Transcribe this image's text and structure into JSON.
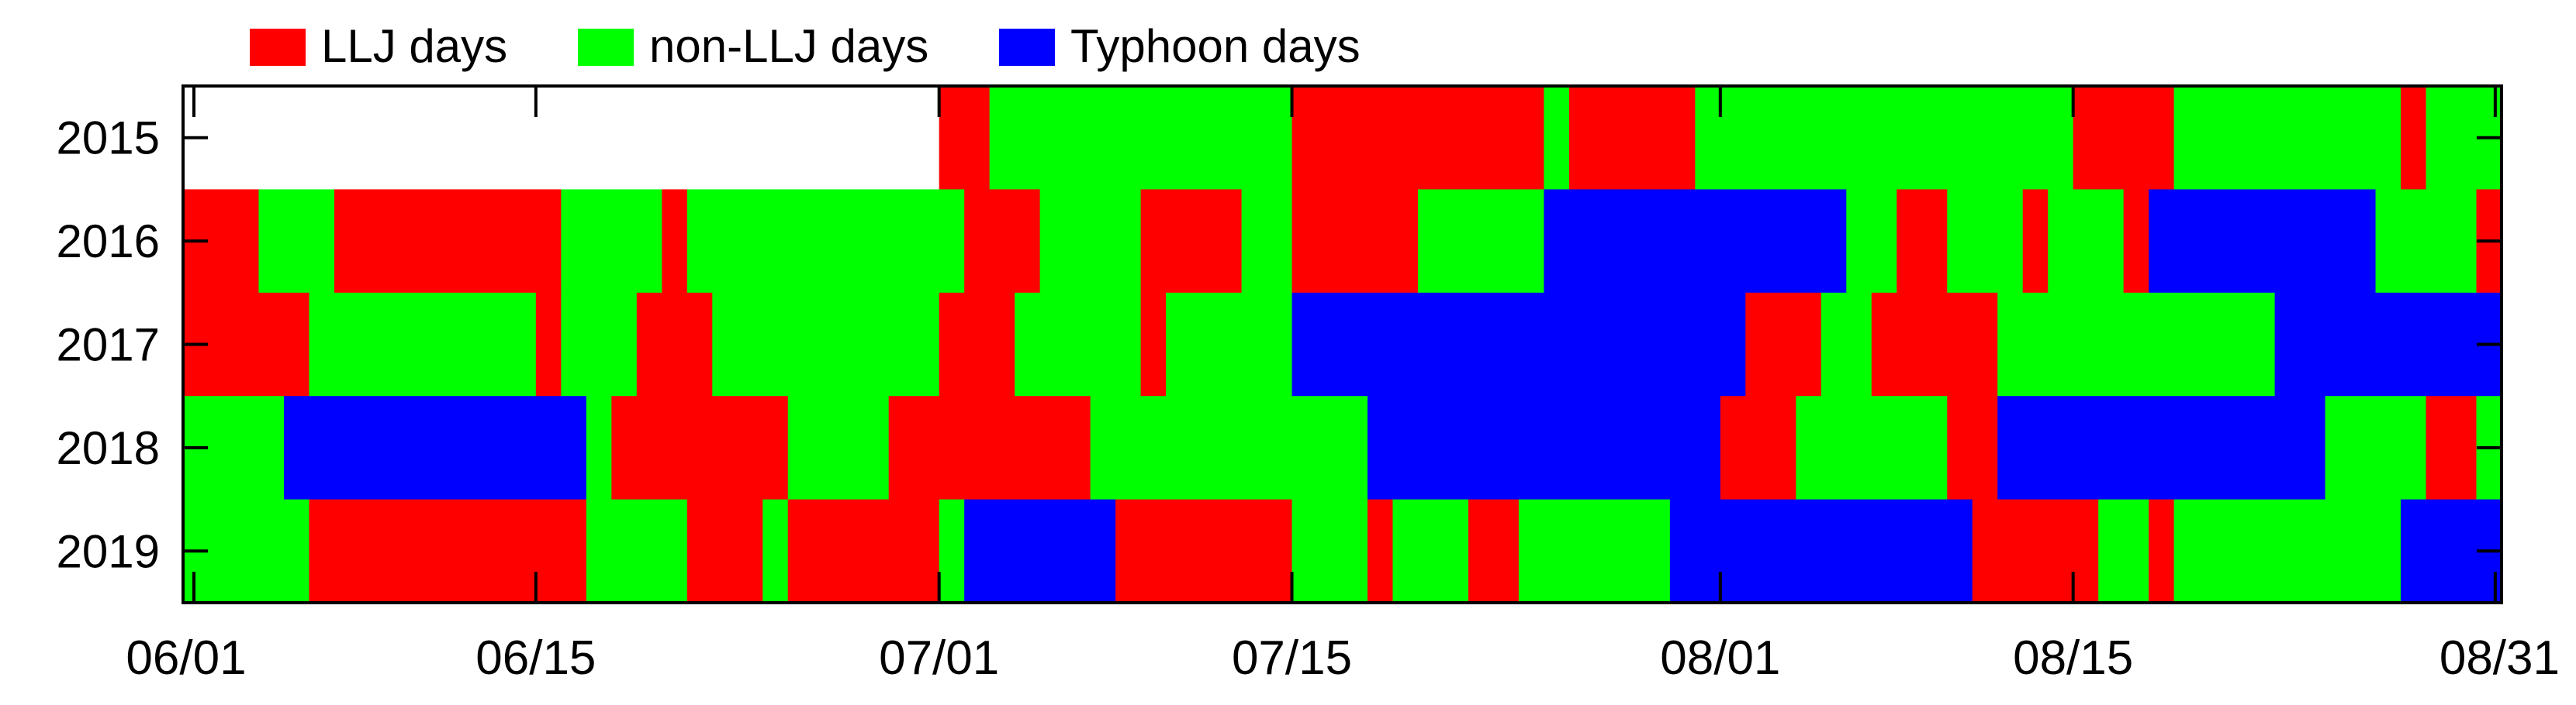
{
  "colors": {
    "LLJ days": "#ff0000",
    "non-LLJ days": "#00ff00",
    "Typhoon days": "#0000ff",
    "frame": "#000000"
  },
  "chart_data": {
    "type": "heatmap",
    "title": "",
    "xlabel": "",
    "ylabel": "",
    "legend": {
      "placement": "top-left",
      "entries": [
        "LLJ days",
        "non-LLJ days",
        "Typhoon days"
      ]
    },
    "x": {
      "start": "06/01",
      "end": "08/31",
      "ticks": [
        "06/01",
        "06/15",
        "07/01",
        "07/15",
        "08/01",
        "08/15",
        "08/31"
      ]
    },
    "y": {
      "categories": [
        "2015",
        "2016",
        "2017",
        "2018",
        "2019"
      ]
    },
    "grid": false,
    "rows": [
      {
        "year": "2015",
        "segments": [
          {
            "from": "07/01",
            "to": "07/02",
            "category": "LLJ days"
          },
          {
            "from": "07/03",
            "to": "07/14",
            "category": "non-LLJ days"
          },
          {
            "from": "07/15",
            "to": "07/24",
            "category": "LLJ days"
          },
          {
            "from": "07/25",
            "to": "07/25",
            "category": "non-LLJ days"
          },
          {
            "from": "07/26",
            "to": "07/30",
            "category": "LLJ days"
          },
          {
            "from": "07/31",
            "to": "08/14",
            "category": "non-LLJ days"
          },
          {
            "from": "08/15",
            "to": "08/18",
            "category": "LLJ days"
          },
          {
            "from": "08/19",
            "to": "08/27",
            "category": "non-LLJ days"
          },
          {
            "from": "08/28",
            "to": "08/28",
            "category": "LLJ days"
          },
          {
            "from": "08/29",
            "to": "08/31",
            "category": "non-LLJ days"
          }
        ]
      },
      {
        "year": "2016",
        "segments": [
          {
            "from": "06/01",
            "to": "06/03",
            "category": "LLJ days"
          },
          {
            "from": "06/04",
            "to": "06/06",
            "category": "non-LLJ days"
          },
          {
            "from": "06/07",
            "to": "06/15",
            "category": "LLJ days"
          },
          {
            "from": "06/16",
            "to": "06/19",
            "category": "non-LLJ days"
          },
          {
            "from": "06/20",
            "to": "06/20",
            "category": "LLJ days"
          },
          {
            "from": "06/21",
            "to": "07/01",
            "category": "non-LLJ days"
          },
          {
            "from": "07/02",
            "to": "07/04",
            "category": "LLJ days"
          },
          {
            "from": "07/05",
            "to": "07/08",
            "category": "non-LLJ days"
          },
          {
            "from": "07/09",
            "to": "07/12",
            "category": "LLJ days"
          },
          {
            "from": "07/13",
            "to": "07/14",
            "category": "non-LLJ days"
          },
          {
            "from": "07/15",
            "to": "07/19",
            "category": "LLJ days"
          },
          {
            "from": "07/20",
            "to": "07/24",
            "category": "non-LLJ days"
          },
          {
            "from": "07/25",
            "to": "08/05",
            "category": "Typhoon days"
          },
          {
            "from": "08/06",
            "to": "08/07",
            "category": "non-LLJ days"
          },
          {
            "from": "08/08",
            "to": "08/09",
            "category": "LLJ days"
          },
          {
            "from": "08/10",
            "to": "08/12",
            "category": "non-LLJ days"
          },
          {
            "from": "08/13",
            "to": "08/13",
            "category": "LLJ days"
          },
          {
            "from": "08/14",
            "to": "08/16",
            "category": "non-LLJ days"
          },
          {
            "from": "08/17",
            "to": "08/17",
            "category": "LLJ days"
          },
          {
            "from": "08/18",
            "to": "08/26",
            "category": "Typhoon days"
          },
          {
            "from": "08/27",
            "to": "08/30",
            "category": "non-LLJ days"
          },
          {
            "from": "08/31",
            "to": "08/31",
            "category": "LLJ days"
          }
        ]
      },
      {
        "year": "2017",
        "segments": [
          {
            "from": "06/01",
            "to": "06/05",
            "category": "LLJ days"
          },
          {
            "from": "06/06",
            "to": "06/14",
            "category": "non-LLJ days"
          },
          {
            "from": "06/15",
            "to": "06/15",
            "category": "LLJ days"
          },
          {
            "from": "06/16",
            "to": "06/18",
            "category": "non-LLJ days"
          },
          {
            "from": "06/19",
            "to": "06/21",
            "category": "LLJ days"
          },
          {
            "from": "06/22",
            "to": "06/30",
            "category": "non-LLJ days"
          },
          {
            "from": "07/01",
            "to": "07/03",
            "category": "LLJ days"
          },
          {
            "from": "07/04",
            "to": "07/08",
            "category": "non-LLJ days"
          },
          {
            "from": "07/09",
            "to": "07/09",
            "category": "LLJ days"
          },
          {
            "from": "07/10",
            "to": "07/14",
            "category": "non-LLJ days"
          },
          {
            "from": "07/15",
            "to": "08/01",
            "category": "Typhoon days"
          },
          {
            "from": "08/02",
            "to": "08/04",
            "category": "LLJ days"
          },
          {
            "from": "08/05",
            "to": "08/06",
            "category": "non-LLJ days"
          },
          {
            "from": "08/07",
            "to": "08/11",
            "category": "LLJ days"
          },
          {
            "from": "08/12",
            "to": "08/22",
            "category": "non-LLJ days"
          },
          {
            "from": "08/23",
            "to": "08/31",
            "category": "Typhoon days"
          }
        ]
      },
      {
        "year": "2018",
        "segments": [
          {
            "from": "06/01",
            "to": "06/04",
            "category": "non-LLJ days"
          },
          {
            "from": "06/05",
            "to": "06/16",
            "category": "Typhoon days"
          },
          {
            "from": "06/17",
            "to": "06/17",
            "category": "non-LLJ days"
          },
          {
            "from": "06/18",
            "to": "06/24",
            "category": "LLJ days"
          },
          {
            "from": "06/25",
            "to": "06/28",
            "category": "non-LLJ days"
          },
          {
            "from": "06/29",
            "to": "07/06",
            "category": "LLJ days"
          },
          {
            "from": "07/07",
            "to": "07/17",
            "category": "non-LLJ days"
          },
          {
            "from": "07/18",
            "to": "07/31",
            "category": "Typhoon days"
          },
          {
            "from": "08/01",
            "to": "08/03",
            "category": "LLJ days"
          },
          {
            "from": "08/04",
            "to": "08/09",
            "category": "non-LLJ days"
          },
          {
            "from": "08/10",
            "to": "08/11",
            "category": "LLJ days"
          },
          {
            "from": "08/12",
            "to": "08/24",
            "category": "Typhoon days"
          },
          {
            "from": "08/25",
            "to": "08/28",
            "category": "non-LLJ days"
          },
          {
            "from": "08/29",
            "to": "08/30",
            "category": "LLJ days"
          },
          {
            "from": "08/31",
            "to": "08/31",
            "category": "non-LLJ days"
          }
        ]
      },
      {
        "year": "2019",
        "segments": [
          {
            "from": "06/01",
            "to": "06/05",
            "category": "non-LLJ days"
          },
          {
            "from": "06/06",
            "to": "06/16",
            "category": "LLJ days"
          },
          {
            "from": "06/17",
            "to": "06/20",
            "category": "non-LLJ days"
          },
          {
            "from": "06/21",
            "to": "06/23",
            "category": "LLJ days"
          },
          {
            "from": "06/24",
            "to": "06/24",
            "category": "non-LLJ days"
          },
          {
            "from": "06/25",
            "to": "06/30",
            "category": "LLJ days"
          },
          {
            "from": "07/01",
            "to": "07/01",
            "category": "non-LLJ days"
          },
          {
            "from": "07/02",
            "to": "07/07",
            "category": "Typhoon days"
          },
          {
            "from": "07/08",
            "to": "07/14",
            "category": "LLJ days"
          },
          {
            "from": "07/15",
            "to": "07/17",
            "category": "non-LLJ days"
          },
          {
            "from": "07/18",
            "to": "07/18",
            "category": "LLJ days"
          },
          {
            "from": "07/19",
            "to": "07/21",
            "category": "non-LLJ days"
          },
          {
            "from": "07/22",
            "to": "07/23",
            "category": "LLJ days"
          },
          {
            "from": "07/24",
            "to": "07/29",
            "category": "non-LLJ days"
          },
          {
            "from": "07/30",
            "to": "08/10",
            "category": "Typhoon days"
          },
          {
            "from": "08/11",
            "to": "08/15",
            "category": "LLJ days"
          },
          {
            "from": "08/16",
            "to": "08/17",
            "category": "non-LLJ days"
          },
          {
            "from": "08/18",
            "to": "08/18",
            "category": "LLJ days"
          },
          {
            "from": "08/19",
            "to": "08/27",
            "category": "non-LLJ days"
          },
          {
            "from": "08/28",
            "to": "08/31",
            "category": "Typhoon days"
          }
        ]
      }
    ]
  }
}
